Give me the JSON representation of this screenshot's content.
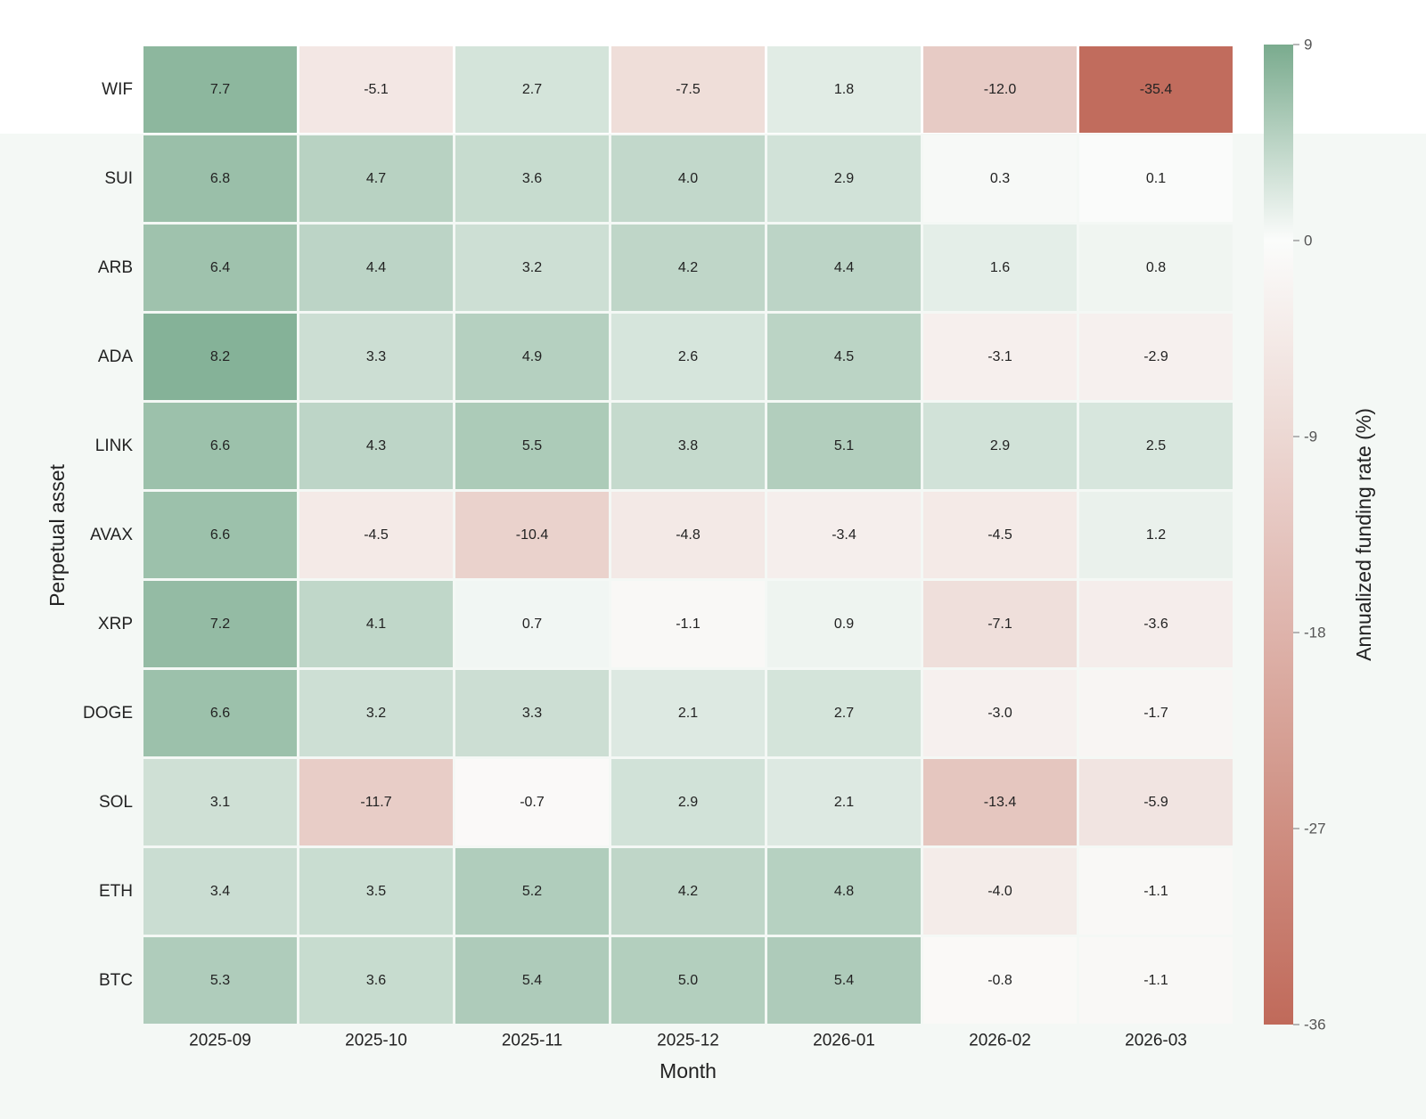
{
  "chart_data": {
    "type": "heatmap",
    "title": "",
    "xlabel": "Month",
    "ylabel": "Perpetual asset",
    "colorbar_label": "Annualized funding rate (%)",
    "x": [
      "2025-09",
      "2025-10",
      "2025-11",
      "2025-12",
      "2026-01",
      "2026-02",
      "2026-03"
    ],
    "y": [
      "WIF",
      "SUI",
      "ARB",
      "ADA",
      "LINK",
      "AVAX",
      "XRP",
      "DOGE",
      "SOL",
      "ETH",
      "BTC"
    ],
    "values": [
      [
        7.7,
        -5.1,
        2.7,
        -7.5,
        1.8,
        -12.0,
        -35.4
      ],
      [
        6.8,
        4.7,
        3.6,
        4.0,
        2.9,
        0.3,
        0.1
      ],
      [
        6.4,
        4.4,
        3.2,
        4.2,
        4.4,
        1.6,
        0.8
      ],
      [
        8.2,
        3.3,
        4.9,
        2.6,
        4.5,
        -3.1,
        -2.9
      ],
      [
        6.6,
        4.3,
        5.5,
        3.8,
        5.1,
        2.9,
        2.5
      ],
      [
        6.6,
        -4.5,
        -10.4,
        -4.8,
        -3.4,
        -4.5,
        1.2
      ],
      [
        7.2,
        4.1,
        0.7,
        -1.1,
        0.9,
        -7.1,
        -3.6
      ],
      [
        6.6,
        3.2,
        3.3,
        2.1,
        2.7,
        -3.0,
        -1.7
      ],
      [
        3.1,
        -11.7,
        -0.7,
        2.9,
        2.1,
        -13.4,
        -5.9
      ],
      [
        3.4,
        3.5,
        5.2,
        4.2,
        4.8,
        -4.0,
        -1.1
      ],
      [
        5.3,
        3.6,
        5.4,
        5.0,
        5.4,
        -0.8,
        -1.1
      ]
    ],
    "colorbar": {
      "min": -36,
      "max": 9,
      "center": 0,
      "ticks": [
        9,
        0,
        -9,
        -18,
        -27,
        -36
      ]
    },
    "colors": {
      "positive": "#7aab8e",
      "neutral": "#fbfcfb",
      "negative": "#c06a5a"
    },
    "grid": false,
    "legend": "colorbar-right"
  }
}
